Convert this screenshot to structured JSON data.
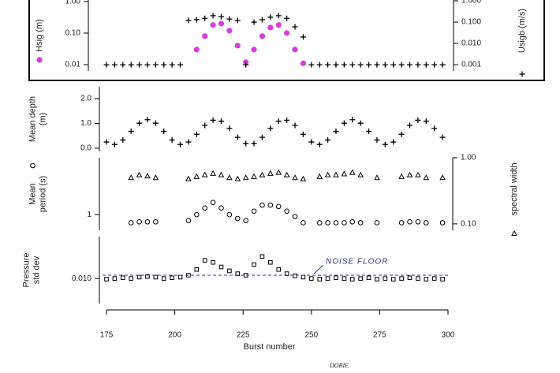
{
  "chart_data": [
    {
      "type": "scatter",
      "log_scale": true,
      "ylabel": [
        "Hsig (m)"
      ],
      "y2label": [
        "Usigb (m/s)"
      ],
      "xlim": [
        175,
        300
      ],
      "ylim": [
        0.0063,
        1.12
      ],
      "yticks": [
        {
          "value": 0.01,
          "label": "0.01"
        },
        {
          "value": 0.1,
          "label": "0.10"
        },
        {
          "value": 1,
          "label": "1.00"
        }
      ],
      "y2lim": [
        0.00051,
        1.09
      ],
      "y2ticks": [
        {
          "value": 0.001,
          "label": "0.001"
        },
        {
          "value": 0.01,
          "label": "0.010"
        },
        {
          "value": 0.1,
          "label": "0.100"
        },
        {
          "value": 1,
          "label": "1.000"
        }
      ],
      "x": [
        175,
        178,
        181,
        184,
        187,
        190,
        193,
        196,
        199,
        202,
        205,
        208,
        211,
        214,
        217,
        220,
        223,
        226,
        229,
        232,
        235,
        238,
        241,
        244,
        247,
        250,
        253,
        256,
        259,
        262,
        265,
        268,
        271,
        274,
        277,
        280,
        283,
        286,
        289,
        292,
        295,
        298
      ],
      "series": [
        {
          "marker": "circle",
          "color": "#d63fd6",
          "values": [
            null,
            null,
            null,
            null,
            null,
            null,
            null,
            null,
            null,
            null,
            null,
            0.03,
            0.08,
            0.18,
            0.2,
            0.12,
            0.04,
            0.012,
            0.03,
            0.08,
            0.15,
            0.18,
            0.1,
            0.03,
            0.011,
            null,
            null,
            null,
            null,
            null,
            null,
            null,
            null,
            null,
            null,
            null,
            null,
            null,
            null,
            null,
            null,
            null
          ]
        },
        {
          "marker": "plus",
          "color": "#000000",
          "axis": "y2",
          "values": [
            0.001,
            0.001,
            0.001,
            0.001,
            0.001,
            0.001,
            0.001,
            0.001,
            0.001,
            0.001,
            0.12,
            0.13,
            0.15,
            0.2,
            0.18,
            0.14,
            0.12,
            0.001,
            0.1,
            0.13,
            0.17,
            0.2,
            0.15,
            0.06,
            0.02,
            0.001,
            0.001,
            0.001,
            0.001,
            0.001,
            0.001,
            0.001,
            0.001,
            0.001,
            0.001,
            0.001,
            0.001,
            0.001,
            0.001,
            0.001,
            0.001,
            0.001
          ]
        }
      ]
    },
    {
      "type": "scatter",
      "log_scale": false,
      "ylabel": [
        "Mean depth",
        "(m)"
      ],
      "xlim": [
        175,
        300
      ],
      "ylim": [
        -0.13,
        2.48
      ],
      "yticks": [
        {
          "value": 0,
          "label": "0.0"
        },
        {
          "value": 1,
          "label": "1.0"
        },
        {
          "value": 2,
          "label": "2.0"
        }
      ],
      "x": [
        175,
        178,
        181,
        184,
        187,
        190,
        193,
        196,
        199,
        202,
        205,
        208,
        211,
        214,
        217,
        220,
        223,
        226,
        229,
        232,
        235,
        238,
        241,
        244,
        247,
        250,
        253,
        256,
        259,
        262,
        265,
        268,
        271,
        274,
        277,
        280,
        283,
        286,
        289,
        292,
        295,
        298
      ],
      "series": [
        {
          "marker": "plus",
          "color": "#000000",
          "values": [
            0.25,
            0.15,
            0.33,
            0.68,
            1.01,
            1.15,
            1.01,
            0.68,
            0.33,
            0.15,
            0.25,
            0.56,
            0.92,
            1.13,
            1.09,
            0.8,
            0.44,
            0.19,
            0.19,
            0.44,
            0.8,
            1.09,
            1.13,
            0.92,
            0.56,
            0.25,
            0.15,
            0.33,
            0.68,
            1.01,
            1.15,
            1.01,
            0.68,
            0.33,
            0.15,
            0.25,
            0.56,
            0.92,
            1.13,
            1.09,
            0.8,
            0.44
          ]
        }
      ]
    },
    {
      "type": "scatter",
      "log_scale": true,
      "ylabel": [
        "Mean",
        "period (s)"
      ],
      "y2label": [
        "spectral width"
      ],
      "xlim": [
        175,
        300
      ],
      "ylim": [
        0.65,
        4.8
      ],
      "yticks": [
        1
      ],
      "y2lim": [
        0.08,
        1.0
      ],
      "y2ticks": [
        {
          "value": 0.1,
          "label": "0.10"
        },
        {
          "value": 1,
          "label": "1.00"
        }
      ],
      "x": [
        175,
        178,
        181,
        184,
        187,
        190,
        193,
        196,
        199,
        202,
        205,
        208,
        211,
        214,
        217,
        220,
        223,
        226,
        229,
        232,
        235,
        238,
        241,
        244,
        247,
        250,
        253,
        256,
        259,
        262,
        265,
        268,
        271,
        274,
        277,
        280,
        283,
        286,
        289,
        292,
        295,
        298
      ],
      "series": [
        {
          "marker": "open-circle",
          "color": "#000000",
          "values": [
            null,
            null,
            null,
            0.8,
            0.82,
            0.82,
            0.82,
            null,
            null,
            null,
            0.85,
            1.0,
            1.2,
            1.4,
            1.2,
            1.0,
            0.9,
            0.85,
            1.1,
            1.3,
            1.3,
            1.25,
            1.1,
            0.95,
            0.8,
            null,
            0.8,
            0.8,
            0.8,
            0.8,
            0.82,
            0.8,
            null,
            0.8,
            null,
            null,
            0.8,
            0.82,
            0.82,
            0.8,
            null,
            0.8
          ]
        },
        {
          "marker": "open-triangle",
          "color": "#000000",
          "axis": "y2",
          "values": [
            null,
            null,
            null,
            0.5,
            0.55,
            0.53,
            0.5,
            null,
            null,
            null,
            0.48,
            0.52,
            0.55,
            0.58,
            0.55,
            0.5,
            0.48,
            0.5,
            0.52,
            0.55,
            0.58,
            0.6,
            0.55,
            0.5,
            0.48,
            null,
            0.52,
            0.55,
            0.55,
            0.57,
            0.6,
            0.55,
            null,
            0.5,
            null,
            null,
            0.52,
            0.55,
            0.55,
            0.5,
            null,
            0.5
          ]
        }
      ]
    },
    {
      "type": "scatter",
      "log_scale": true,
      "ylabel": [
        "Pressure",
        "std dev"
      ],
      "xlim": [
        175,
        300
      ],
      "ylim": [
        0.0048,
        0.034
      ],
      "yticks": [
        {
          "value": 0.01,
          "label": "0.010"
        }
      ],
      "xticks": [
        175,
        200,
        225,
        250,
        275,
        300
      ],
      "xlabel": "Burst number",
      "noise_floor": 0.011,
      "annotation": "NOISE FLOOR",
      "noise_color": "#33338a",
      "x": [
        175,
        178,
        181,
        184,
        187,
        190,
        193,
        196,
        199,
        202,
        205,
        208,
        211,
        214,
        217,
        220,
        223,
        226,
        229,
        232,
        235,
        238,
        241,
        244,
        247,
        250,
        253,
        256,
        259,
        262,
        265,
        268,
        271,
        274,
        277,
        280,
        283,
        286,
        289,
        292,
        295,
        298
      ],
      "series": [
        {
          "marker": "open-square",
          "color": "#000000",
          "values": [
            0.0098,
            0.01,
            0.0102,
            0.01,
            0.0104,
            0.0106,
            0.0104,
            0.01,
            0.0102,
            0.0104,
            0.011,
            0.013,
            0.017,
            0.016,
            0.014,
            0.0125,
            0.0115,
            0.011,
            0.015,
            0.019,
            0.016,
            0.013,
            0.0115,
            0.0108,
            0.0104,
            0.01,
            0.0098,
            0.01,
            0.0102,
            0.01,
            0.0098,
            0.01,
            0.0102,
            0.0098,
            0.01,
            0.0098,
            0.01,
            0.0102,
            0.01,
            0.0098,
            0.01,
            0.0098
          ]
        }
      ]
    }
  ],
  "caption": "DOBIE"
}
